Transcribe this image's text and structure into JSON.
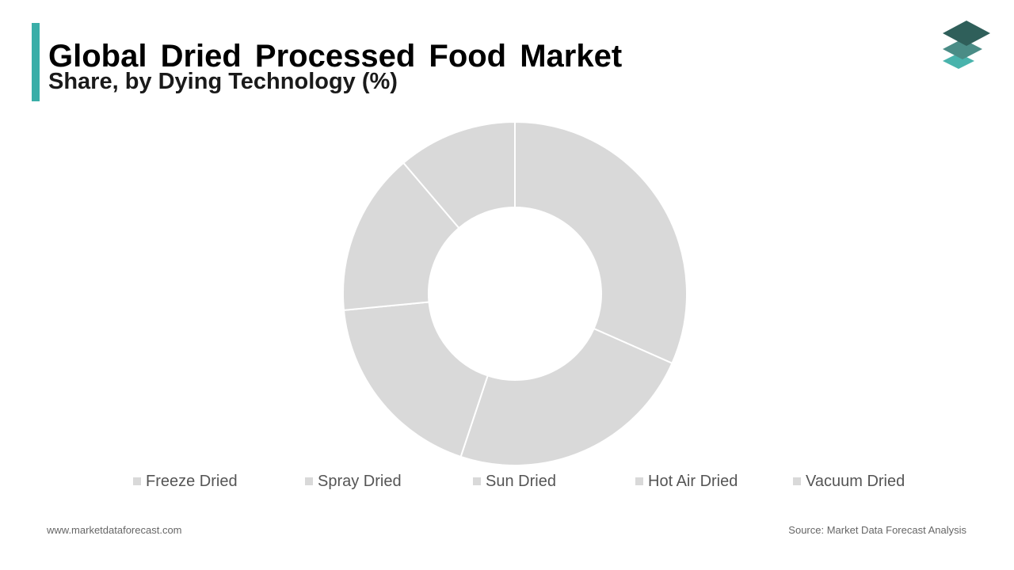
{
  "header": {
    "title": "Global Dried Processed Food Market",
    "subtitle": "Share, by Dying Technology (%)"
  },
  "colors": {
    "accent": "#3aaea8",
    "slice": "#d9d9d9",
    "slice_border": "#ffffff",
    "logo_top": "#2f5f5a",
    "logo_middle": "#4a8c86",
    "logo_bottom": "#49b3ac"
  },
  "logo": {
    "icon": "stacked-layers-icon"
  },
  "chart_data": {
    "type": "pie",
    "style": "donut",
    "legend": "bottom",
    "categories": [
      "Freeze Dried",
      "Spray Dried",
      "Sun Dried",
      "Hot Air Dried",
      "Vacuum Dried"
    ],
    "values": [
      31,
      23,
      18,
      15,
      11
    ]
  },
  "footer": {
    "website": "www.marketdataforecast.com",
    "source": "Source: Market Data Forecast Analysis"
  }
}
